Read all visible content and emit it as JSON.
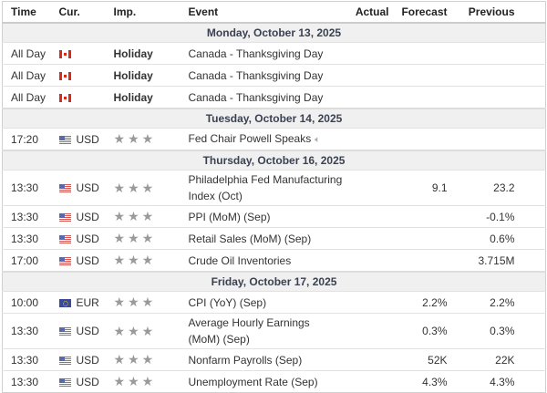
{
  "columns": {
    "time": "Time",
    "cur": "Cur.",
    "imp": "Imp.",
    "event": "Event",
    "actual": "Actual",
    "forecast": "Forecast",
    "previous": "Previous"
  },
  "days": [
    {
      "date": "Monday, October 13, 2025",
      "events": [
        {
          "time": "All Day",
          "flag": "canada",
          "cur": "",
          "imp": "Holiday",
          "event": "Canada - Thanksgiving Day",
          "actual": "",
          "forecast": "",
          "previous": ""
        },
        {
          "time": "All Day",
          "flag": "canada",
          "cur": "",
          "imp": "Holiday",
          "event": "Canada - Thanksgiving Day",
          "actual": "",
          "forecast": "",
          "previous": ""
        },
        {
          "time": "All Day",
          "flag": "canada",
          "cur": "",
          "imp": "Holiday",
          "event": "Canada - Thanksgiving Day",
          "actual": "",
          "forecast": "",
          "previous": ""
        }
      ]
    },
    {
      "date": "Tuesday, October 14, 2025",
      "events": [
        {
          "time": "17:20",
          "flag": "us",
          "cur": "USD",
          "stars": 3,
          "event": "Fed Chair Powell Speaks",
          "speech": true,
          "actual": "",
          "forecast": "",
          "previous": ""
        }
      ]
    },
    {
      "date": "Thursday, October 16, 2025",
      "events": [
        {
          "time": "13:30",
          "flag": "us",
          "cur": "USD",
          "stars": 3,
          "event": "Philadelphia Fed Manufacturing Index (Oct)",
          "actual": "",
          "forecast": "9.1",
          "previous": "23.2",
          "tall": true
        },
        {
          "time": "13:30",
          "flag": "us",
          "cur": "USD",
          "stars": 3,
          "event": "PPI (MoM) (Sep)",
          "actual": "",
          "forecast": "",
          "previous": "-0.1%"
        },
        {
          "time": "13:30",
          "flag": "us",
          "cur": "USD",
          "stars": 3,
          "event": "Retail Sales (MoM) (Sep)",
          "actual": "",
          "forecast": "",
          "previous": "0.6%"
        },
        {
          "time": "17:00",
          "flag": "us",
          "cur": "USD",
          "stars": 3,
          "event": "Crude Oil Inventories",
          "actual": "",
          "forecast": "",
          "previous": "3.715M"
        }
      ]
    },
    {
      "date": "Friday, October 17, 2025",
      "events": [
        {
          "time": "10:00",
          "flag": "eu",
          "cur": "EUR",
          "stars": 3,
          "event": "CPI (YoY) (Sep)",
          "actual": "",
          "forecast": "2.2%",
          "previous": "2.2%"
        },
        {
          "time": "13:30",
          "flag": "us",
          "cur": "USD",
          "stars": 3,
          "event": "Average Hourly Earnings (MoM) (Sep)",
          "actual": "",
          "forecast": "0.3%",
          "previous": "0.3%",
          "tall": true
        },
        {
          "time": "13:30",
          "flag": "us",
          "cur": "USD",
          "stars": 3,
          "event": "Nonfarm Payrolls (Sep)",
          "actual": "",
          "forecast": "52K",
          "previous": "22K"
        },
        {
          "time": "13:30",
          "flag": "us",
          "cur": "USD",
          "stars": 3,
          "event": "Unemployment Rate (Sep)",
          "actual": "",
          "forecast": "4.3%",
          "previous": "4.3%"
        }
      ]
    }
  ],
  "colors": {
    "star": "#9a9a9a",
    "date_row_bg": "#f0f0f0"
  }
}
